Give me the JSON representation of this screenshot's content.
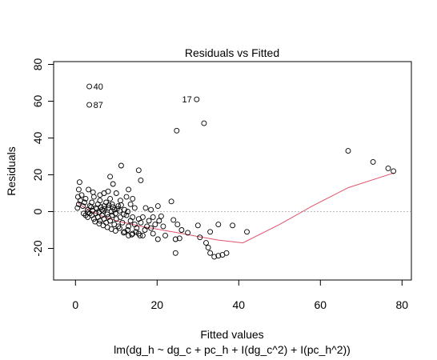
{
  "chart_data": {
    "type": "scatter",
    "title": "Residuals vs Fitted",
    "xlabel": "Fitted values",
    "ylabel": "Residuals",
    "subtitle": "lm(dg_h ~ dg_c + pc_h + I(dg_c^2) + I(pc_h^2))",
    "xlim": [
      0,
      80
    ],
    "ylim": [
      -40,
      80
    ],
    "x_ticks": [
      0,
      20,
      40,
      60,
      80
    ],
    "y_ticks": [
      -20,
      0,
      20,
      40,
      60,
      80
    ],
    "grid": false,
    "zero_line": {
      "y": 0,
      "style": "dotted",
      "color": "#bdbdbd"
    },
    "point_color": "#000000",
    "smooth_color": "#df536b",
    "points": [
      [
        3.4,
        68
      ],
      [
        3.4,
        58
      ],
      [
        29.7,
        61
      ],
      [
        31.5,
        48
      ],
      [
        24.8,
        44
      ],
      [
        66.8,
        33
      ],
      [
        72.9,
        27
      ],
      [
        76.6,
        23.5
      ],
      [
        77.9,
        22
      ],
      [
        11.2,
        25
      ],
      [
        15.5,
        22.5
      ],
      [
        16.0,
        17
      ],
      [
        8.5,
        19
      ],
      [
        9.2,
        15
      ],
      [
        1.0,
        16
      ],
      [
        0.8,
        12
      ],
      [
        3.2,
        12
      ],
      [
        4.3,
        10.5
      ],
      [
        10.0,
        10
      ],
      [
        13.0,
        12
      ],
      [
        20.2,
        3
      ],
      [
        23.5,
        5.5
      ],
      [
        17.2,
        2
      ],
      [
        18.5,
        1
      ],
      [
        21.0,
        -2.5
      ],
      [
        24.0,
        -4.5
      ],
      [
        25.0,
        -7
      ],
      [
        26.0,
        -10
      ],
      [
        27.5,
        -11.5
      ],
      [
        24.5,
        -15
      ],
      [
        25.5,
        -14.5
      ],
      [
        24.5,
        -22.5
      ],
      [
        22.0,
        -13
      ],
      [
        20.2,
        -15
      ],
      [
        19.0,
        -12
      ],
      [
        17.0,
        -10
      ],
      [
        16.5,
        -13
      ],
      [
        14.0,
        -12
      ],
      [
        12.0,
        -11
      ],
      [
        13.0,
        -13
      ],
      [
        15.5,
        -12
      ],
      [
        30.0,
        -7.5
      ],
      [
        30.5,
        -14
      ],
      [
        32.0,
        -17
      ],
      [
        32.5,
        -19.5
      ],
      [
        33.0,
        -22.5
      ],
      [
        34.0,
        -24.5
      ],
      [
        35.0,
        -24
      ],
      [
        36.0,
        -23.5
      ],
      [
        37.0,
        -22.5
      ],
      [
        35.0,
        -7
      ],
      [
        38.5,
        -7.5
      ],
      [
        42.0,
        -11
      ],
      [
        33.0,
        -11
      ],
      [
        0.5,
        2
      ],
      [
        0.8,
        4
      ],
      [
        1.2,
        6
      ],
      [
        0.6,
        8
      ],
      [
        1.5,
        9
      ],
      [
        1.8,
        3
      ],
      [
        2.2,
        5
      ],
      [
        2.5,
        7
      ],
      [
        3.0,
        1
      ],
      [
        3.5,
        3
      ],
      [
        4.0,
        5
      ],
      [
        4.5,
        8
      ],
      [
        5.0,
        2
      ],
      [
        5.5,
        4
      ],
      [
        6.0,
        6
      ],
      [
        6.5,
        1
      ],
      [
        7.0,
        3
      ],
      [
        7.5,
        5
      ],
      [
        8.0,
        2
      ],
      [
        8.5,
        7
      ],
      [
        9.0,
        4
      ],
      [
        9.5,
        1
      ],
      [
        10.5,
        3
      ],
      [
        11.0,
        6
      ],
      [
        12.0,
        1
      ],
      [
        13.5,
        4
      ],
      [
        14.5,
        2
      ],
      [
        2.0,
        -1
      ],
      [
        2.5,
        -2
      ],
      [
        3.0,
        -3
      ],
      [
        3.5,
        -1
      ],
      [
        4.0,
        -2
      ],
      [
        4.5,
        -4
      ],
      [
        5.0,
        -1
      ],
      [
        5.5,
        -3
      ],
      [
        6.0,
        -5
      ],
      [
        6.5,
        -2
      ],
      [
        7.0,
        -4
      ],
      [
        7.5,
        -6
      ],
      [
        8.0,
        -3
      ],
      [
        8.5,
        -5
      ],
      [
        9.0,
        -2
      ],
      [
        9.5,
        -7
      ],
      [
        10.0,
        -4
      ],
      [
        10.5,
        -8
      ],
      [
        11.0,
        -3
      ],
      [
        11.5,
        -6
      ],
      [
        12.5,
        -2
      ],
      [
        13.0,
        -8
      ],
      [
        13.5,
        -5
      ],
      [
        14.0,
        -3
      ],
      [
        14.5,
        -7
      ],
      [
        15.0,
        -9
      ],
      [
        15.5,
        -4
      ],
      [
        16.0,
        -6
      ],
      [
        16.5,
        -3
      ],
      [
        17.5,
        -8
      ],
      [
        18.0,
        -5
      ],
      [
        18.5,
        -9
      ],
      [
        19.0,
        -3
      ],
      [
        19.5,
        -7
      ],
      [
        20.5,
        -5
      ],
      [
        21.5,
        -8
      ],
      [
        3.0,
        -0.5
      ],
      [
        4.2,
        0.5
      ],
      [
        5.8,
        -0.5
      ],
      [
        6.8,
        0.5
      ],
      [
        7.8,
        -1.5
      ],
      [
        8.8,
        0
      ],
      [
        9.8,
        -1
      ],
      [
        10.8,
        0.5
      ],
      [
        11.8,
        -1.5
      ],
      [
        12.8,
        0
      ],
      [
        3.8,
        2.5
      ],
      [
        5.2,
        1.5
      ],
      [
        6.2,
        2.5
      ],
      [
        7.2,
        1.5
      ],
      [
        8.2,
        3.5
      ],
      [
        9.2,
        2.5
      ],
      [
        10.2,
        1.5
      ],
      [
        11.2,
        3.5
      ],
      [
        4.8,
        -5.5
      ],
      [
        5.8,
        -6.5
      ],
      [
        6.8,
        -7.5
      ],
      [
        7.8,
        -8.5
      ],
      [
        8.8,
        -9.5
      ],
      [
        9.8,
        -10.5
      ],
      [
        10.8,
        -9
      ],
      [
        11.8,
        -11.5
      ],
      [
        12.8,
        -10
      ],
      [
        13.8,
        -12.5
      ],
      [
        14.8,
        -11
      ],
      [
        15.8,
        -13
      ],
      [
        6.0,
        9
      ],
      [
        7.0,
        10
      ],
      [
        8.0,
        11
      ],
      [
        12.5,
        8
      ],
      [
        14.0,
        7
      ]
    ],
    "point_labels": [
      {
        "text": "40",
        "x": 3.4,
        "y": 68,
        "side": "right"
      },
      {
        "text": "87",
        "x": 3.4,
        "y": 58,
        "side": "right"
      },
      {
        "text": "17",
        "x": 29.7,
        "y": 61,
        "side": "left"
      }
    ],
    "smooth_line": [
      [
        0.5,
        5
      ],
      [
        2,
        2.5
      ],
      [
        4,
        0
      ],
      [
        6,
        -2
      ],
      [
        8,
        -3.5
      ],
      [
        10,
        -5
      ],
      [
        13,
        -6.5
      ],
      [
        16,
        -8
      ],
      [
        20,
        -9.5
      ],
      [
        25,
        -11.5
      ],
      [
        30,
        -13.5
      ],
      [
        35,
        -15.5
      ],
      [
        41,
        -17
      ],
      [
        50,
        -7
      ],
      [
        58,
        3
      ],
      [
        66.8,
        13
      ],
      [
        78,
        21
      ]
    ]
  }
}
